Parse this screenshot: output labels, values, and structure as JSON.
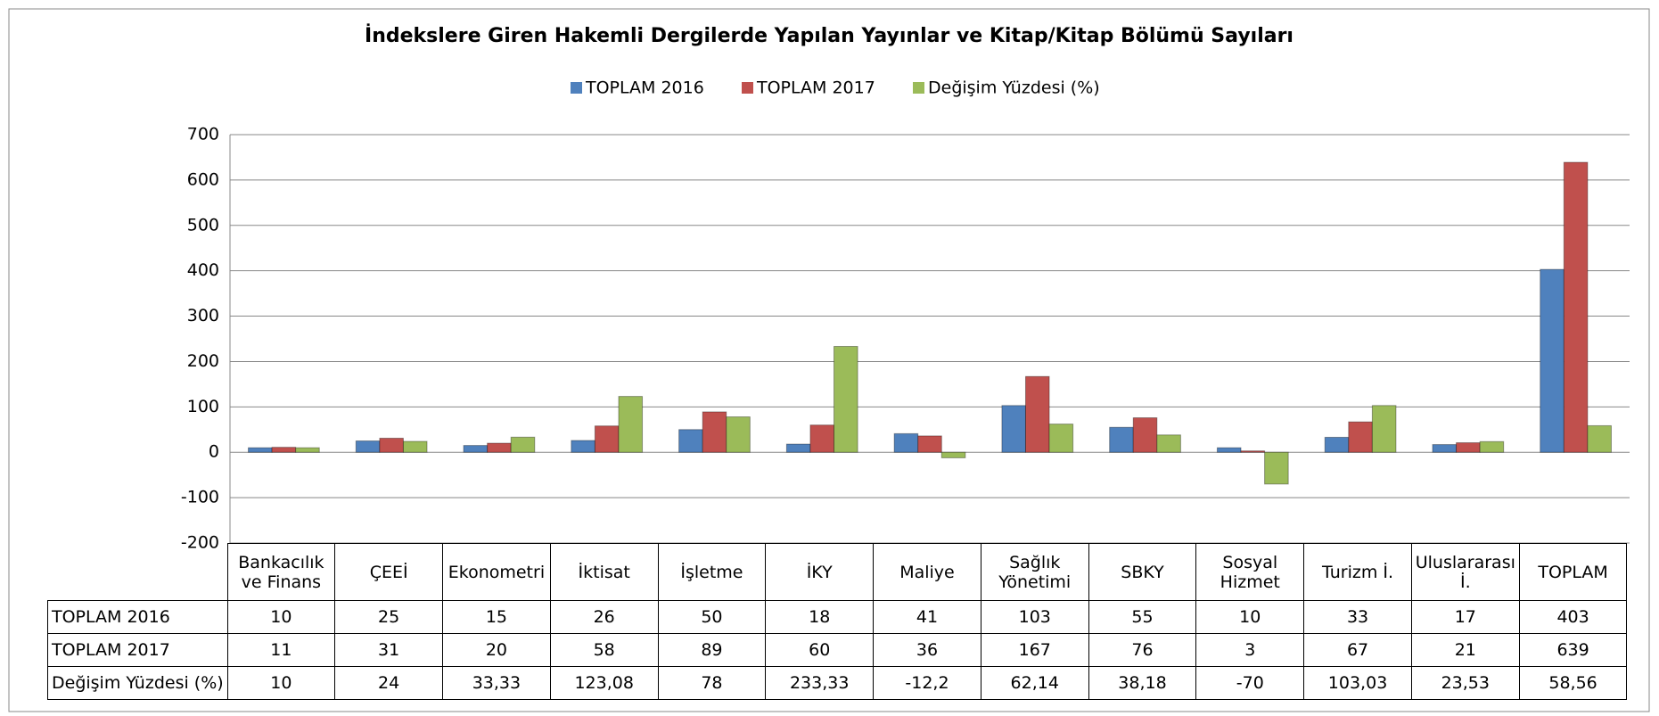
{
  "chart_data": {
    "type": "bar",
    "title": "İndekslere Giren Hakemli Dergilerde Yapılan Yayınlar ve Kitap/Kitap Bölümü Sayıları",
    "categories": [
      "Bankacılık ve Finans",
      "ÇEEİ",
      "Ekonometri",
      "İktisat",
      "İşletme",
      "İKY",
      "Maliye",
      "Sağlık Yönetimi",
      "SBKY",
      "Sosyal Hizmet",
      "Turizm İ.",
      "Uluslararası İ.",
      "TOPLAM"
    ],
    "series": [
      {
        "name": "TOPLAM 2016",
        "color": "#4f81bd",
        "values": [
          10,
          25,
          15,
          26,
          50,
          18,
          41,
          103,
          55,
          10,
          33,
          17,
          403
        ]
      },
      {
        "name": "TOPLAM 2017",
        "color": "#c0504d",
        "values": [
          11,
          31,
          20,
          58,
          89,
          60,
          36,
          167,
          76,
          3,
          67,
          21,
          639
        ]
      },
      {
        "name": "Değişim Yüzdesi (%)",
        "color": "#9bbb59",
        "values": [
          10,
          24,
          33.33,
          123.08,
          78,
          233.33,
          -12.2,
          62.14,
          38.18,
          -70,
          103.03,
          23.53,
          58.56
        ],
        "value_labels": [
          "10",
          "24",
          "33,33",
          "123,08",
          "78",
          "233,33",
          "-12,2",
          "62,14",
          "38,18",
          "-70",
          "103,03",
          "23,53",
          "58,56"
        ]
      }
    ],
    "ylim": [
      -200,
      700
    ],
    "yticks": [
      -200,
      -100,
      0,
      100,
      200,
      300,
      400,
      500,
      600,
      700
    ],
    "grid": true,
    "legend": "top"
  }
}
